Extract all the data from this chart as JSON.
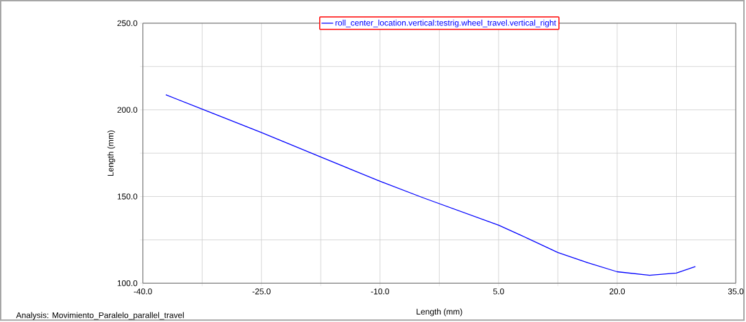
{
  "chart_data": {
    "type": "line",
    "xlabel": "Length (mm)",
    "ylabel": "Length (mm)",
    "annotations": [
      "Analysis:  Movimiento_Paralelo_parallel_travel"
    ],
    "xlim": [
      -40,
      35
    ],
    "ylim": [
      100,
      250
    ],
    "xticks": [
      {
        "value": -40,
        "label": "-40.0"
      },
      {
        "value": -32.5,
        "label": null
      },
      {
        "value": -25,
        "label": "-25.0"
      },
      {
        "value": -17.5,
        "label": null
      },
      {
        "value": -10,
        "label": "-10.0"
      },
      {
        "value": -2.5,
        "label": null
      },
      {
        "value": 5,
        "label": "5.0"
      },
      {
        "value": 12.5,
        "label": null
      },
      {
        "value": 20,
        "label": "20.0"
      },
      {
        "value": 27.5,
        "label": null
      },
      {
        "value": 35,
        "label": "35.0"
      }
    ],
    "yticks": [
      {
        "value": 100,
        "label": "100.0"
      },
      {
        "value": 125,
        "label": null
      },
      {
        "value": 150,
        "label": "150.0"
      },
      {
        "value": 175,
        "label": null
      },
      {
        "value": 200,
        "label": "200.0"
      },
      {
        "value": 225,
        "label": null
      },
      {
        "value": 250,
        "label": "250.0"
      }
    ],
    "grid": true,
    "legend": "top",
    "line_style": "solid",
    "marker": "none",
    "series": [
      {
        "name": "roll_center_location.vertical:testrig.wheel_travel.vertical_right",
        "color": "#0000ff",
        "x": [
          -37.1,
          -32.5,
          -25,
          -17.5,
          -10,
          -4.5,
          5,
          8.8,
          12.5,
          16.3,
          20,
          24.1,
          27.5,
          29.9
        ],
        "values": [
          208.7,
          200.4,
          186.9,
          172.8,
          158.8,
          149.2,
          133.5,
          125.6,
          117.7,
          111.8,
          106.6,
          104.6,
          105.9,
          109.6
        ]
      }
    ]
  }
}
